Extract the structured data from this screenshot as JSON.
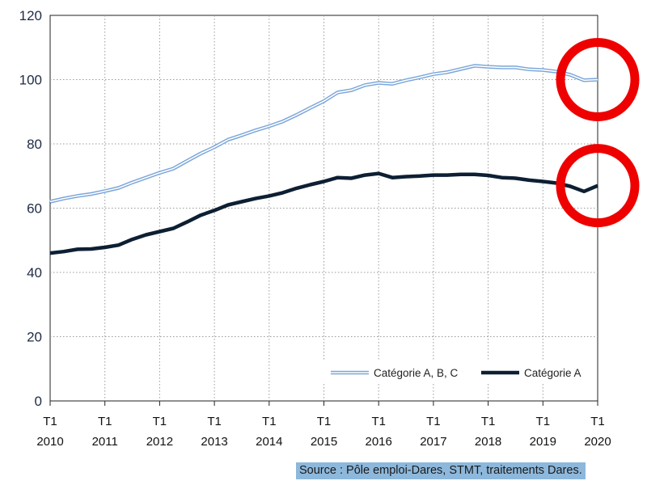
{
  "chart_data": {
    "type": "line",
    "title": "",
    "xlabel": "",
    "ylabel": "",
    "ylim": [
      0,
      120
    ],
    "yticks": [
      0,
      20,
      40,
      60,
      80,
      100,
      120
    ],
    "xlim": [
      2010,
      2020
    ],
    "xticks": [
      {
        "x": 2010,
        "quarter": "T1",
        "year": "2010"
      },
      {
        "x": 2011,
        "quarter": "T1",
        "year": "2011"
      },
      {
        "x": 2012,
        "quarter": "T1",
        "year": "2012"
      },
      {
        "x": 2013,
        "quarter": "T1",
        "year": "2013"
      },
      {
        "x": 2014,
        "quarter": "T1",
        "year": "2014"
      },
      {
        "x": 2015,
        "quarter": "T1",
        "year": "2015"
      },
      {
        "x": 2016,
        "quarter": "T1",
        "year": "2016"
      },
      {
        "x": 2017,
        "quarter": "T1",
        "year": "2017"
      },
      {
        "x": 2018,
        "quarter": "T1",
        "year": "2018"
      },
      {
        "x": 2019,
        "quarter": "T1",
        "year": "2019"
      },
      {
        "x": 2020,
        "quarter": "T1",
        "year": "2020"
      }
    ],
    "grid": true,
    "legend_position": "bottom-right",
    "x": [
      2010,
      2010.25,
      2010.5,
      2010.75,
      2011,
      2011.25,
      2011.5,
      2011.75,
      2012,
      2012.25,
      2012.5,
      2012.75,
      2013,
      2013.25,
      2013.5,
      2013.75,
      2014,
      2014.25,
      2014.5,
      2014.75,
      2015,
      2015.25,
      2015.5,
      2015.75,
      2016,
      2016.25,
      2016.5,
      2016.75,
      2017,
      2017.25,
      2017.5,
      2017.75,
      2018,
      2018.25,
      2018.5,
      2018.75,
      2019,
      2019.25,
      2019.5,
      2019.75,
      2020
    ],
    "series": [
      {
        "name": "Catégorie A, B, C",
        "style": "double-line",
        "color": "#7ba6d9",
        "values": [
          62,
          63,
          63.8,
          64.4,
          65.3,
          66.3,
          68,
          69.5,
          71,
          72.3,
          74.7,
          77,
          79,
          81.3,
          82.7,
          84.2,
          85.5,
          87,
          89,
          91.2,
          93.3,
          96,
          96.7,
          98.3,
          99,
          98.7,
          99.8,
          100.7,
          101.7,
          102.3,
          103.3,
          104.3,
          104,
          103.8,
          103.8,
          103.2,
          103,
          102.5,
          101.5,
          99.8,
          100
        ]
      },
      {
        "name": "Catégorie A",
        "style": "solid-thick",
        "color": "#0d1f33",
        "values": [
          46,
          46.5,
          47.2,
          47.3,
          47.8,
          48.5,
          50.3,
          51.7,
          52.7,
          53.7,
          55.7,
          57.8,
          59.3,
          61,
          62,
          63,
          63.8,
          64.8,
          66.2,
          67.3,
          68.3,
          69.5,
          69.3,
          70.3,
          70.8,
          69.5,
          69.8,
          70,
          70.3,
          70.3,
          70.5,
          70.5,
          70.2,
          69.5,
          69.3,
          68.7,
          68.3,
          67.8,
          66.8,
          65.2,
          67
        ]
      }
    ],
    "annotations": [
      {
        "shape": "circle",
        "color": "#ee0000",
        "at_x": 2020,
        "at_y": 100
      },
      {
        "shape": "circle",
        "color": "#ee0000",
        "at_x": 2020,
        "at_y": 67
      }
    ]
  },
  "source_note": "Source : Pôle emploi-Dares, STMT, traitements Dares."
}
